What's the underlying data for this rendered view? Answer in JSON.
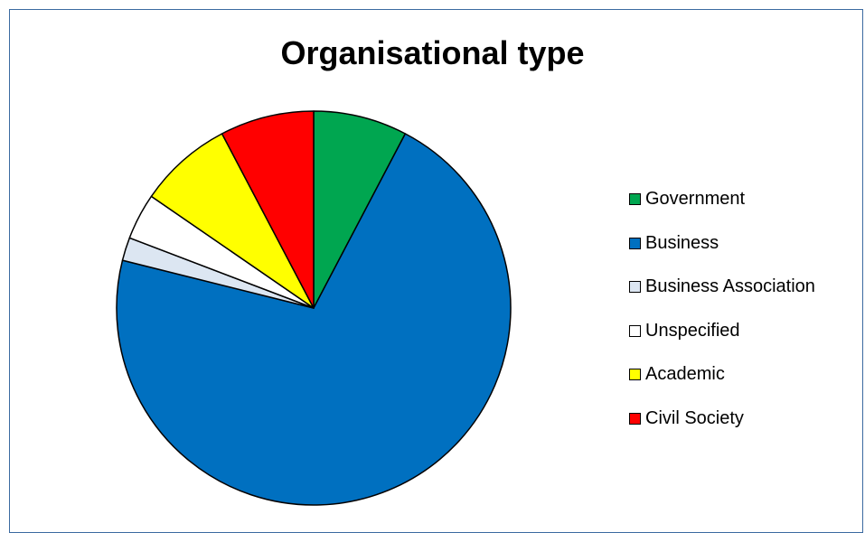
{
  "chart_data": {
    "type": "pie",
    "title": "Organisational type",
    "legend_position": "right",
    "start_angle": "top, clockwise",
    "slices": [
      {
        "label": "Government",
        "value": 7.7,
        "color": "#00a650"
      },
      {
        "label": "Business",
        "value": 71.2,
        "color": "#0070c0"
      },
      {
        "label": "Business Association",
        "value": 1.9,
        "color": "#dce6f2"
      },
      {
        "label": "Unspecified",
        "value": 3.8,
        "color": "#ffffff"
      },
      {
        "label": "Academic",
        "value": 7.7,
        "color": "#ffff00"
      },
      {
        "label": "Civil Society",
        "value": 7.7,
        "color": "#ff0000"
      }
    ]
  }
}
